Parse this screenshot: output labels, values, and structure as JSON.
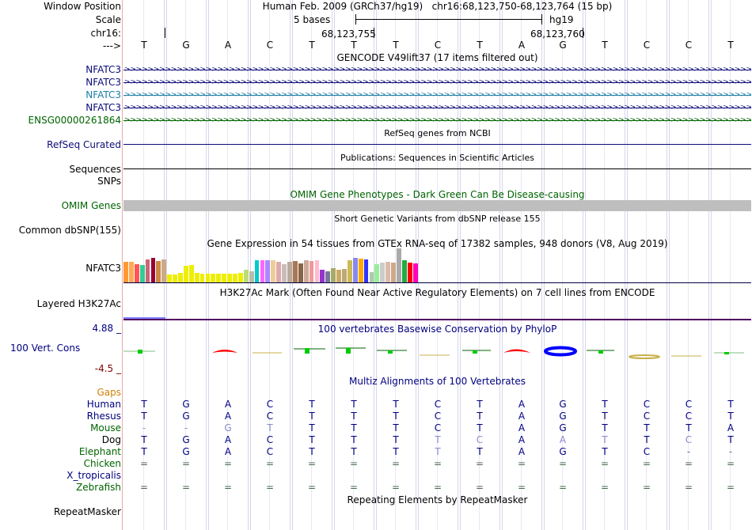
{
  "header": {
    "window_position_label": "Window Position",
    "window_position_value": "Human Feb. 2009 (GRCh37/hg19)   chr16:68,123,750-68,123,764 (15 bp)",
    "scale_label": "Scale",
    "scale_text": "5 bases",
    "assembly": "hg19",
    "chrom_label": "chr16:",
    "coord1": "68,123,755",
    "coord2": "68,123,760",
    "strand_label": "--->"
  },
  "bases": [
    "T",
    "G",
    "A",
    "C",
    "T",
    "T",
    "T",
    "C",
    "T",
    "A",
    "G",
    "T",
    "C",
    "C",
    "T"
  ],
  "gencode": {
    "title": "GENCODE V49lift37 (17 items filtered out)",
    "items": [
      {
        "name": "NFATC3",
        "color": "#0c0c78"
      },
      {
        "name": "NFATC3",
        "color": "#0c0c78"
      },
      {
        "name": "NFATC3",
        "color": "#1c7ea6"
      },
      {
        "name": "NFATC3",
        "color": "#0c0c78"
      },
      {
        "name": "ENSG00000261864",
        "color": "#006400"
      }
    ]
  },
  "refseq": {
    "title": "RefSeq genes from NCBI",
    "label": "RefSeq Curated"
  },
  "publications": {
    "title": "Publications: Sequences in Scientific Articles",
    "label1": "Sequences",
    "label2": "SNPs"
  },
  "omim": {
    "title": "OMIM Gene Phenotypes - Dark Green Can Be Disease-causing",
    "label": "OMIM Genes"
  },
  "dbsnp": {
    "title": "Short Genetic Variants from dbSNP release 155",
    "label": "Common dbSNP(155)"
  },
  "gtex": {
    "title": "Gene Expression in 54 tissues from GTEx RNA-seq of 17382 samples, 948 donors (V8, Aug 2019)",
    "label": "NFATC3",
    "bars": [
      {
        "v": 26,
        "c": "#ff9933"
      },
      {
        "v": 26,
        "c": "#ffaa55"
      },
      {
        "v": 23,
        "c": "#ff5555"
      },
      {
        "v": 22,
        "c": "#33cc99"
      },
      {
        "v": 29,
        "c": "#cc6677"
      },
      {
        "v": 31,
        "c": "#990033"
      },
      {
        "v": 27,
        "c": "#cc8844"
      },
      {
        "v": 29,
        "c": "#ccaa88"
      },
      {
        "v": 10,
        "c": "#eeee00"
      },
      {
        "v": 10,
        "c": "#eeee00"
      },
      {
        "v": 12,
        "c": "#eeee00"
      },
      {
        "v": 21,
        "c": "#eeee00"
      },
      {
        "v": 22,
        "c": "#eeee00"
      },
      {
        "v": 12,
        "c": "#eeee00"
      },
      {
        "v": 11,
        "c": "#eeee00"
      },
      {
        "v": 11,
        "c": "#eeee00"
      },
      {
        "v": 11,
        "c": "#eeee00"
      },
      {
        "v": 11,
        "c": "#eeee00"
      },
      {
        "v": 11,
        "c": "#eeee00"
      },
      {
        "v": 11,
        "c": "#eeee00"
      },
      {
        "v": 11,
        "c": "#eeee00"
      },
      {
        "v": 12,
        "c": "#eeee00"
      },
      {
        "v": 16,
        "c": "#bbdd77"
      },
      {
        "v": 14,
        "c": "#bbbbaa"
      },
      {
        "v": 28,
        "c": "#00cccc"
      },
      {
        "v": 28,
        "c": "#ff66ff"
      },
      {
        "v": 28,
        "c": "#aa88ff"
      },
      {
        "v": 28,
        "c": "#eecc99"
      },
      {
        "v": 26,
        "c": "#ddaaaa"
      },
      {
        "v": 23,
        "c": "#ccbbbb"
      },
      {
        "v": 26,
        "c": "#bbaa99"
      },
      {
        "v": 27,
        "c": "#aa7755"
      },
      {
        "v": 24,
        "c": "#886644"
      },
      {
        "v": 28,
        "c": "#ccaa99"
      },
      {
        "v": 27,
        "c": "#ee9999"
      },
      {
        "v": 28,
        "c": "#ffbbcc"
      },
      {
        "v": 16,
        "c": "#9933cc"
      },
      {
        "v": 14,
        "c": "#777799"
      },
      {
        "v": 18,
        "c": "#aaaa66"
      },
      {
        "v": 16,
        "c": "#ccaa66"
      },
      {
        "v": 17,
        "c": "#bbaa77"
      },
      {
        "v": 28,
        "c": "#ccbb55"
      },
      {
        "v": 31,
        "c": "#8888ee"
      },
      {
        "v": 30,
        "c": "#ffaa00"
      },
      {
        "v": 29,
        "c": "#3333ff"
      },
      {
        "v": 13,
        "c": "#aaccaa"
      },
      {
        "v": 23,
        "c": "#99ee99"
      },
      {
        "v": 25,
        "c": "#cccccc"
      },
      {
        "v": 26,
        "c": "#ddbbaa"
      },
      {
        "v": 25,
        "c": "#ccaa88"
      },
      {
        "v": 43,
        "c": "#aaaaaa"
      },
      {
        "v": 28,
        "c": "#22aa44"
      },
      {
        "v": 25,
        "c": "#ff0000"
      },
      {
        "v": 24,
        "c": "#ff00bb"
      }
    ]
  },
  "h3k27ac": {
    "title": "H3K27Ac Mark (Often Found Near Active Regulatory Elements) on 7 cell lines from ENCODE",
    "label": "Layered H3K27Ac"
  },
  "phylop": {
    "title": "100 vertebrates Basewise Conservation by PhyloP",
    "label": "100 Vert. Cons",
    "ymax": "4.88 _",
    "ymin": "-4.5 _"
  },
  "multiz": {
    "title": "Multiz Alignments of 100 Vertebrates",
    "gaps_label": "Gaps",
    "species": [
      {
        "name": "Human",
        "color": "#000080",
        "seq": [
          "T",
          "G",
          "A",
          "C",
          "T",
          "T",
          "T",
          "C",
          "T",
          "A",
          "G",
          "T",
          "C",
          "C",
          "T"
        ]
      },
      {
        "name": "Rhesus",
        "color": "#000080",
        "seq": [
          "T",
          "G",
          "A",
          "C",
          "T",
          "T",
          "T",
          "C",
          "T",
          "A",
          "G",
          "T",
          "C",
          "C",
          "T"
        ]
      },
      {
        "name": "Mouse",
        "color": "#006400",
        "seq": [
          "-",
          "-",
          "G",
          "T",
          "T",
          "T",
          "T",
          "C",
          "T",
          "A",
          "G",
          "T",
          "T",
          "T",
          "A"
        ]
      },
      {
        "name": "Dog",
        "color": "#000000",
        "seq": [
          "T",
          "G",
          "A",
          "C",
          "T",
          "T",
          "T",
          "T",
          "C",
          "A",
          "A",
          "T",
          "T",
          "C",
          "T"
        ]
      },
      {
        "name": "Elephant",
        "color": "#006400",
        "seq": [
          "T",
          "G",
          "A",
          "C",
          "T",
          "T",
          "T",
          "T",
          "T",
          "A",
          "G",
          "T",
          "C",
          "-",
          "-"
        ]
      },
      {
        "name": "Chicken",
        "color": "#006400",
        "seq": [
          "=",
          "=",
          "=",
          "=",
          "=",
          "=",
          "=",
          "=",
          "=",
          "=",
          "=",
          "=",
          "=",
          "=",
          "="
        ]
      },
      {
        "name": "X_tropicalis",
        "color": "#000080",
        "seq": [
          "",
          "",
          "",
          "",
          "",
          "",
          "",
          "",
          "",
          "",
          "",
          "",
          "",
          "",
          ""
        ]
      },
      {
        "name": "Zebrafish",
        "color": "#006400",
        "seq": [
          "=",
          "=",
          "=",
          "=",
          "=",
          "=",
          "=",
          "=",
          "=",
          "=",
          "=",
          "=",
          "=",
          "=",
          "="
        ]
      }
    ]
  },
  "repeatmasker": {
    "title": "Repeating Elements by RepeatMasker",
    "label": "RepeatMasker"
  },
  "colors": {
    "navy": "#000080",
    "green": "#006400",
    "orange": "#d08000",
    "gutter": "#e6aaaa",
    "grid": "#d6d6ec"
  }
}
